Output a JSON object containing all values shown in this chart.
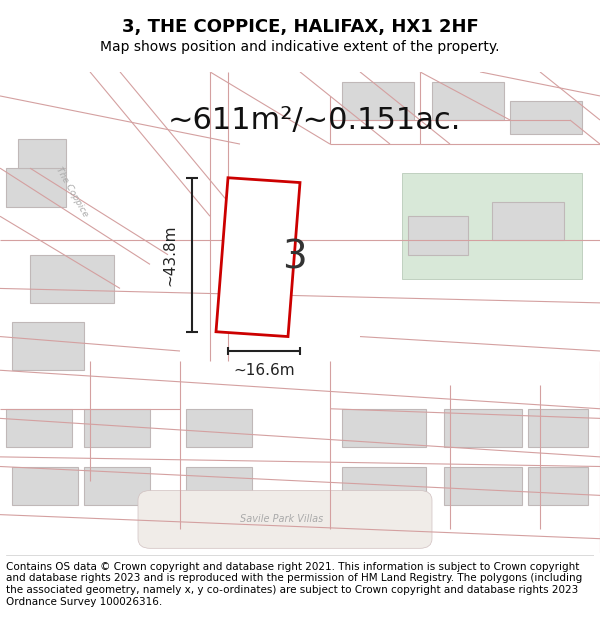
{
  "title": "3, THE COPPICE, HALIFAX, HX1 2HF",
  "subtitle": "Map shows position and indicative extent of the property.",
  "area_text": "~611m²/~0.151ac.",
  "dim_height": "~43.8m",
  "dim_width": "~16.6m",
  "plot_label": "3",
  "footer": "Contains OS data © Crown copyright and database right 2021. This information is subject to Crown copyright and database rights 2023 and is reproduced with the permission of HM Land Registry. The polygons (including the associated geometry, namely x, y co-ordinates) are subject to Crown copyright and database rights 2023 Ordnance Survey 100026316.",
  "bg_color": "#f5f5f0",
  "map_bg": "#f8f8f4",
  "road_color": "#e8d8d8",
  "building_color": "#d8d8d8",
  "building_edge": "#c0b8b8",
  "plot_fill": "#ffffff",
  "plot_edge": "#cc0000",
  "green_fill": "#d8e8d8",
  "green_edge": "#c0d0c0",
  "street_text_color": "#aaaaaa",
  "dim_color": "#222222",
  "title_fontsize": 13,
  "subtitle_fontsize": 10,
  "area_fontsize": 22,
  "dim_fontsize": 11,
  "plot_label_fontsize": 28,
  "footer_fontsize": 7.5
}
